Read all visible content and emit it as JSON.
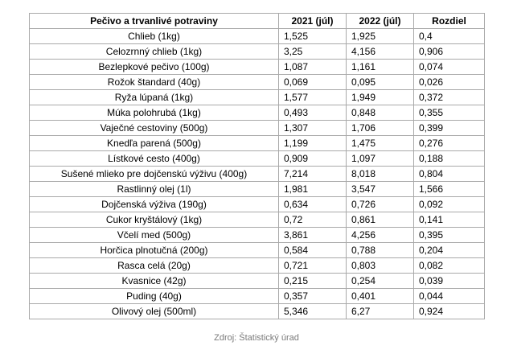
{
  "table": {
    "headers": [
      "Pečivo a trvanlivé potraviny",
      "2021 (júl)",
      "2022 (júl)",
      "Rozdiel"
    ],
    "rows": [
      [
        "Chlieb (1kg)",
        "1,525",
        "1,925",
        "0,4"
      ],
      [
        "Celozrnný chlieb (1kg)",
        "3,25",
        "4,156",
        "0,906"
      ],
      [
        "Bezlepkové pečivo (100g)",
        "1,087",
        "1,161",
        "0,074"
      ],
      [
        "Rožok štandard (40g)",
        "0,069",
        "0,095",
        "0,026"
      ],
      [
        "Ryža lúpaná (1kg)",
        "1,577",
        "1,949",
        "0,372"
      ],
      [
        "Múka polohrubá (1kg)",
        "0,493",
        "0,848",
        "0,355"
      ],
      [
        "Vaječné cestoviny (500g)",
        "1,307",
        "1,706",
        "0,399"
      ],
      [
        "Knedľa parená (500g)",
        "1,199",
        "1,475",
        "0,276"
      ],
      [
        "Lístkové cesto (400g)",
        "0,909",
        "1,097",
        "0,188"
      ],
      [
        "Sušené mlieko pre dojčenskú výživu (400g)",
        "7,214",
        "8,018",
        "0,804"
      ],
      [
        "Rastlinný olej (1l)",
        "1,981",
        "3,547",
        "1,566"
      ],
      [
        "Dojčenská výživa (190g)",
        "0,634",
        "0,726",
        "0,092"
      ],
      [
        "Cukor kryštálový (1kg)",
        "0,72",
        "0,861",
        "0,141"
      ],
      [
        "Včelí med (500g)",
        "3,861",
        "4,256",
        "0,395"
      ],
      [
        "Horčica plnotučná (200g)",
        "0,584",
        "0,788",
        "0,204"
      ],
      [
        "Rasca celá (20g)",
        "0,721",
        "0,803",
        "0,082"
      ],
      [
        "Kvasnice (42g)",
        "0,215",
        "0,254",
        "0,039"
      ],
      [
        "Puding (40g)",
        "0,357",
        "0,401",
        "0,044"
      ],
      [
        "Olivový olej (500ml)",
        "5,346",
        "6,27",
        "0,924"
      ]
    ]
  },
  "source": "Zdroj: Štatistický úrad",
  "colors": {
    "border": "#a9a9a9",
    "source_text": "#7a7a7a"
  }
}
